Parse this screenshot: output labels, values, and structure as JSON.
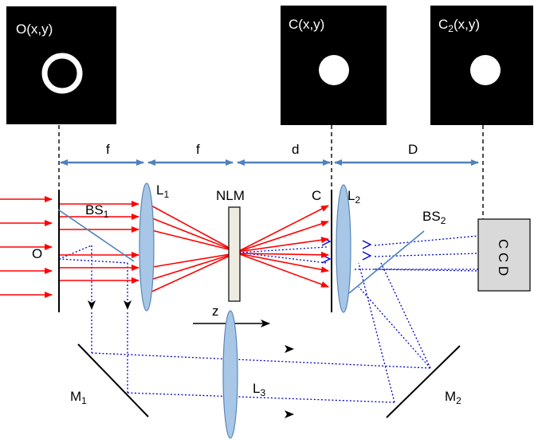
{
  "panels": {
    "object": {
      "label_main": "O(x,y)"
    },
    "correlation": {
      "label_main": "C(x,y)"
    },
    "correlation2": {
      "label_main": "C",
      "label_sub": "2",
      "label_tail": "(x,y)"
    }
  },
  "dimensions": {
    "f1": "f",
    "f2": "f",
    "d": "d",
    "D": "D"
  },
  "labels": {
    "object_plane": "O",
    "bs1_main": "BS",
    "bs1_sub": "1",
    "l1_main": "L",
    "l1_sub": "1",
    "nlm": "NLM",
    "c_plane": "C",
    "l2_main": "L",
    "l2_sub": "2",
    "bs2_main": "BS",
    "bs2_sub": "2",
    "ccd": "C C D",
    "z_axis": "z",
    "l3_main": "L",
    "l3_sub": "3",
    "m1_main": "M",
    "m1_sub": "1",
    "m2_main": "M",
    "m2_sub": "2"
  },
  "colors": {
    "arrow_blue": "#4f81bd",
    "ray_red": "#ff0000",
    "ray_blue": "#0000cc",
    "lens_fill": "#a8c6e6",
    "lens_stroke": "#5b87b8",
    "nlm_fill": "#eeece1",
    "ccd_fill": "#d9d9d9",
    "panel_black": "#000000"
  }
}
